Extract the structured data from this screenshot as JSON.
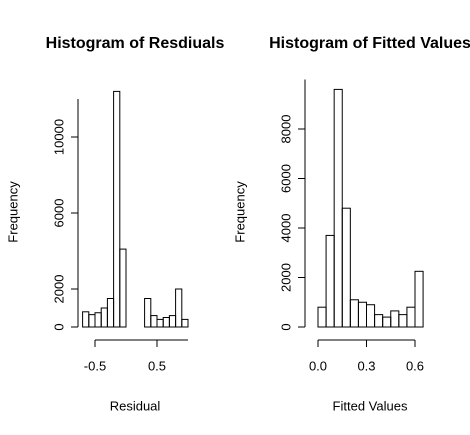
{
  "chart_data": [
    {
      "type": "histogram",
      "title": "Histogram of Resdiuals",
      "xlabel": "Residual",
      "ylabel": "Frequency",
      "bins": [
        -0.7,
        -0.6,
        -0.5,
        -0.4,
        -0.3,
        -0.2,
        -0.1,
        0,
        0.1,
        0.2,
        0.3,
        0.4,
        0.5,
        0.6,
        0.7,
        0.8,
        0.9,
        1.0
      ],
      "counts": [
        800,
        650,
        750,
        1000,
        1500,
        12400,
        4100,
        0,
        0,
        0,
        1500,
        600,
        400,
        500,
        600,
        2000,
        400
      ],
      "xlim": [
        -0.5,
        1.0
      ],
      "xticks": [
        -0.5,
        0.5
      ],
      "ylim": [
        0,
        12000
      ],
      "yticks": [
        0,
        2000,
        6000,
        10000
      ]
    },
    {
      "type": "histogram",
      "title": "Histogram of Fitted Values",
      "xlabel": "Fitted Values",
      "ylabel": "Frequency",
      "bins": [
        0,
        0.05,
        0.1,
        0.15,
        0.2,
        0.25,
        0.3,
        0.35,
        0.4,
        0.45,
        0.5,
        0.55,
        0.6,
        0.65
      ],
      "counts": [
        800,
        3700,
        9600,
        4800,
        1100,
        1000,
        900,
        500,
        400,
        650,
        500,
        800,
        2250
      ],
      "xlim": [
        0,
        0.6
      ],
      "xticks": [
        {
          "value": 0,
          "label": "0.0"
        },
        0.3,
        0.6
      ],
      "ylim": [
        0,
        10000
      ],
      "yticks": [
        0,
        2000,
        4000,
        6000,
        8000
      ]
    }
  ]
}
